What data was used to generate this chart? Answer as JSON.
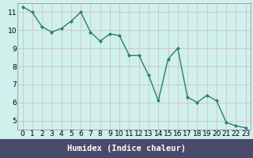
{
  "x": [
    0,
    1,
    2,
    3,
    4,
    5,
    6,
    7,
    8,
    9,
    10,
    11,
    12,
    13,
    14,
    15,
    16,
    17,
    18,
    19,
    20,
    21,
    22,
    23
  ],
  "y": [
    11.3,
    11.0,
    10.2,
    9.9,
    10.1,
    10.5,
    11.0,
    9.9,
    9.4,
    9.8,
    9.7,
    8.6,
    8.6,
    7.5,
    6.1,
    8.4,
    9.0,
    6.3,
    6.0,
    6.4,
    6.1,
    4.9,
    4.7,
    4.6
  ],
  "line_color": "#2e7d6e",
  "marker": "D",
  "marker_size": 2.0,
  "bg_color": "#cff0ec",
  "grid_color": "#d4b8b8",
  "xlabel": "Humidex (Indice chaleur)",
  "xlim": [
    -0.5,
    23.5
  ],
  "ylim": [
    4.5,
    11.5
  ],
  "yticks": [
    5,
    6,
    7,
    8,
    9,
    10,
    11
  ],
  "xticks": [
    0,
    1,
    2,
    3,
    4,
    5,
    6,
    7,
    8,
    9,
    10,
    11,
    12,
    13,
    14,
    15,
    16,
    17,
    18,
    19,
    20,
    21,
    22,
    23
  ],
  "xlabel_fontsize": 7.5,
  "tick_fontsize": 6.5,
  "line_width": 1.0,
  "bottom_bar_color": "#4a4a6a",
  "bottom_bar_height": 0.12
}
